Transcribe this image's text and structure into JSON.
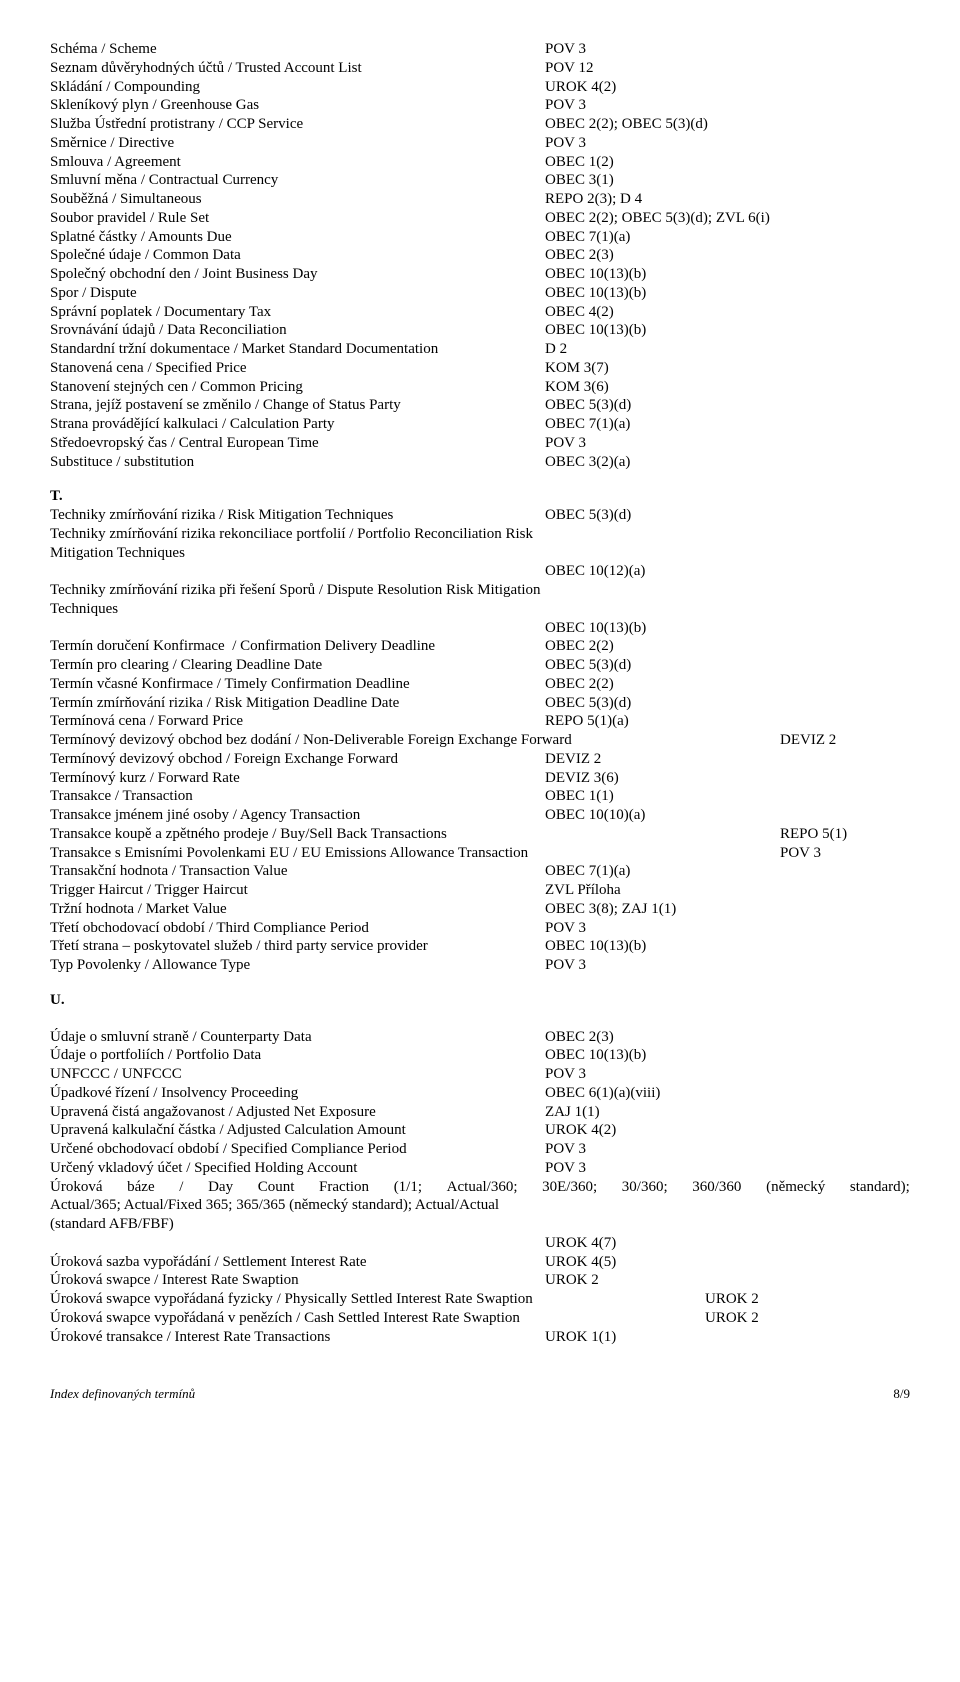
{
  "section1": [
    {
      "label": "Schéma / Scheme",
      "value": "POV 3",
      "col": 495
    },
    {
      "label": "Seznam důvěryhodných účtů / Trusted Account List",
      "value": "POV 12",
      "col": 495
    },
    {
      "label": "Skládání / Compounding",
      "value": "UROK 4(2)",
      "col": 495
    },
    {
      "label": "Skleníkový plyn / Greenhouse Gas",
      "value": "POV 3",
      "col": 495
    },
    {
      "label": "Služba Ústřední protistrany / CCP Service",
      "value": "OBEC 2(2); OBEC 5(3)(d)",
      "col": 495
    },
    {
      "label": "Směrnice / Directive",
      "value": "POV 3",
      "col": 495
    },
    {
      "label": "Smlouva / Agreement",
      "value": "OBEC 1(2)",
      "col": 495
    },
    {
      "label": "Smluvní měna / Contractual Currency",
      "value": "OBEC 3(1)",
      "col": 495
    },
    {
      "label": "Souběžná / Simultaneous",
      "value": "REPO 2(3); D 4",
      "col": 495
    },
    {
      "label": "Soubor pravidel / Rule Set",
      "value": "OBEC 2(2); OBEC 5(3)(d); ZVL 6(i)",
      "col": 495
    },
    {
      "label": "Splatné částky / Amounts Due",
      "value": "OBEC 7(1)(a)",
      "col": 495
    },
    {
      "label": "Společné údaje / Common Data",
      "value": "OBEC 2(3)",
      "col": 495
    },
    {
      "label": "Společný obchodní den / Joint Business Day",
      "value": "OBEC 10(13)(b)",
      "col": 495
    },
    {
      "label": "Spor / Dispute",
      "value": "OBEC 10(13)(b)",
      "col": 495
    },
    {
      "label": "Správní poplatek / Documentary Tax",
      "value": "OBEC 4(2)",
      "col": 495
    },
    {
      "label": "Srovnávání údajů / Data Reconciliation",
      "value": "OBEC 10(13)(b)",
      "col": 495
    },
    {
      "label": "Standardní tržní dokumentace / Market Standard Documentation",
      "value": "D 2",
      "col": 495
    },
    {
      "label": "Stanovená cena / Specified Price",
      "value": "KOM 3(7)",
      "col": 495
    },
    {
      "label": "Stanovení stejných cen / Common Pricing",
      "value": "KOM 3(6)",
      "col": 495
    },
    {
      "label": "Strana, jejíž postavení se změnilo / Change of Status Party",
      "value": "OBEC 5(3)(d)",
      "col": 495
    },
    {
      "label": "Strana provádějící kalkulaci / Calculation Party",
      "value": "OBEC 7(1)(a)",
      "col": 495
    },
    {
      "label": "Středoevropský čas / Central European Time",
      "value": "POV 3",
      "col": 495
    },
    {
      "label": "Substituce / substitution",
      "value": "OBEC 3(2)(a)",
      "col": 495
    }
  ],
  "section2_header": "T.",
  "section2": [
    {
      "label": "Techniky zmírňování rizika / Risk Mitigation Techniques",
      "value": "OBEC 5(3)(d)",
      "col": 495
    },
    {
      "label": "Techniky zmírňování rizika rekonciliace portfolií / Portfolio Reconciliation Risk Mitigation Techniques",
      "value": "",
      "col": 495
    },
    {
      "label": "",
      "value": "OBEC 10(12)(a)",
      "col": 495
    },
    {
      "label": "Techniky zmírňování rizika při řešení Sporů / Dispute Resolution Risk Mitigation Techniques",
      "value": "",
      "col": 495
    },
    {
      "label": "",
      "value": "OBEC 10(13)(b)",
      "col": 495
    },
    {
      "label": "Termín doručení Konfirmace  / Confirmation Delivery Deadline",
      "value": "OBEC 2(2)",
      "col": 495
    },
    {
      "label": "Termín pro clearing / Clearing Deadline Date",
      "value": "OBEC 5(3)(d)",
      "col": 495
    },
    {
      "label": "Termín včasné Konfirmace / Timely Confirmation Deadline",
      "value": "OBEC 2(2)",
      "col": 495
    },
    {
      "label": "Termín zmírňování rizika / Risk Mitigation Deadline Date",
      "value": "OBEC 5(3)(d)",
      "col": 495
    },
    {
      "label": "Termínová cena / Forward Price",
      "value": "REPO 5(1)(a)",
      "col": 495
    },
    {
      "label": "Termínový devizový obchod bez dodání / Non-Deliverable Foreign Exchange Forward",
      "value": "DEVIZ 2",
      "col": 730
    },
    {
      "label": "Termínový devizový obchod / Foreign Exchange Forward",
      "value": "DEVIZ 2",
      "col": 495
    },
    {
      "label": "Termínový kurz / Forward Rate",
      "value": "DEVIZ 3(6)",
      "col": 495
    },
    {
      "label": "Transakce / Transaction",
      "value": "OBEC 1(1)",
      "col": 495
    },
    {
      "label": "Transakce jménem jiné osoby / Agency Transaction",
      "value": "OBEC 10(10)(a)",
      "col": 495
    },
    {
      "label": "Transakce koupě a zpětného prodeje / Buy/Sell Back Transactions",
      "value": "REPO 5(1)",
      "col": 730
    },
    {
      "label": "Transakce s Emisními Povolenkami EU / EU Emissions Allowance Transaction",
      "value": "POV 3",
      "col": 730
    },
    {
      "label": "Transakční hodnota / Transaction Value",
      "value": "OBEC 7(1)(a)",
      "col": 495
    },
    {
      "label": "Trigger Haircut / Trigger Haircut",
      "value": "ZVL Příloha",
      "col": 495
    },
    {
      "label": "Tržní hodnota / Market Value",
      "value": "OBEC 3(8); ZAJ 1(1)",
      "col": 495
    },
    {
      "label": "Třetí obchodovací období / Third Compliance Period",
      "value": "POV 3",
      "col": 495
    },
    {
      "label": "Třetí strana – poskytovatel služeb / third party service provider",
      "value": "OBEC 10(13)(b)",
      "col": 495
    },
    {
      "label": "Typ Povolenky / Allowance Type",
      "value": "POV 3",
      "col": 495
    }
  ],
  "section3_header": "U.",
  "section3_gap": true,
  "section3": [
    {
      "label": "Údaje o smluvní straně / Counterparty Data",
      "value": "OBEC 2(3)",
      "col": 495
    },
    {
      "label": "Údaje o portfoliích / Portfolio Data",
      "value": "OBEC 10(13)(b)",
      "col": 495
    },
    {
      "label": "UNFCCC / UNFCCC",
      "value": "POV 3",
      "col": 495
    },
    {
      "label": "Úpadkové řízení / Insolvency Proceeding",
      "value": "OBEC 6(1)(a)(viii)",
      "col": 495
    },
    {
      "label": "Upravená čistá angažovanost / Adjusted Net Exposure",
      "value": "ZAJ 1(1)",
      "col": 495
    },
    {
      "label": "Upravená kalkulační částka / Adjusted Calculation Amount",
      "value": "UROK 4(2)",
      "col": 495
    },
    {
      "label": "Určené obchodovací období / Specified Compliance Period",
      "value": "POV 3",
      "col": 495
    },
    {
      "label": "Určený vkladový účet / Specified Holding Account",
      "value": "POV 3",
      "col": 495
    }
  ],
  "justified_line": {
    "words": [
      "Úroková",
      "báze",
      "/",
      "Day",
      "Count",
      "Fraction",
      "(1/1;",
      "Actual/360;",
      "30E/360;",
      "30/360;",
      "360/360",
      "(německý",
      "standard);"
    ]
  },
  "section3b": [
    {
      "label": "Actual/365; Actual/Fixed 365; 365/365 (německý standard); Actual/Actual (standard AFB/FBF)",
      "value": "",
      "col": 495
    },
    {
      "label": "",
      "value": "UROK 4(7)",
      "col": 495
    },
    {
      "label": "Úroková sazba vypořádání / Settlement Interest Rate",
      "value": "UROK 4(5)",
      "col": 495
    },
    {
      "label": "Úroková swapce / Interest Rate Swaption",
      "value": "UROK 2",
      "col": 495
    },
    {
      "label": "Úroková swapce vypořádaná fyzicky / Physically Settled Interest Rate Swaption",
      "value": "UROK 2",
      "col": 655
    },
    {
      "label": "Úroková swapce vypořádaná v penězích / Cash Settled Interest Rate Swaption",
      "value": "UROK 2",
      "col": 655
    },
    {
      "label": "Úrokové transakce / Interest Rate Transactions",
      "value": "UROK 1(1)",
      "col": 495
    }
  ],
  "footer": {
    "left": "Index definovaných termínů",
    "right": "8/9"
  }
}
